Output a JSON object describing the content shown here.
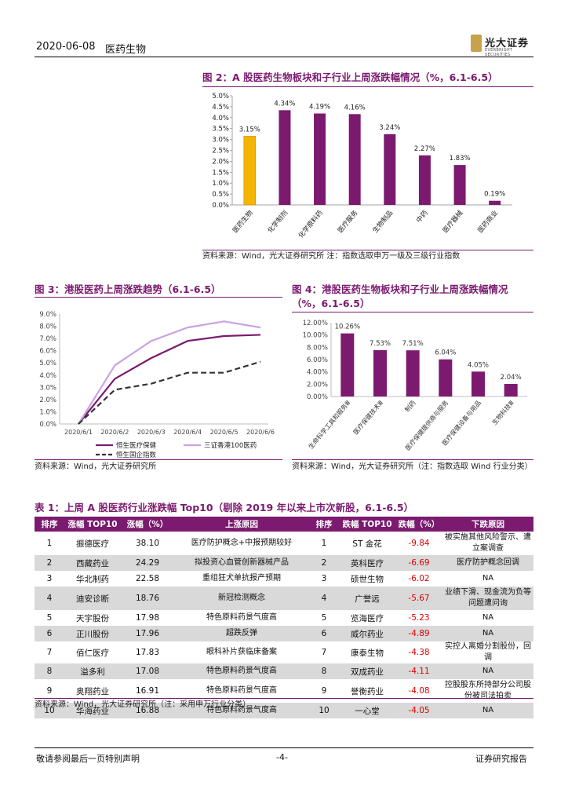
{
  "header": {
    "date": "2020-06-08",
    "sector": "医药生物",
    "logo_text": "光大证券",
    "logo_sub": "EVERBRIGHT SECURITIES"
  },
  "fig2": {
    "title": "图 2：A 股医药生物板块和子行业上周涨跌幅情况（%，6.1-6.5）",
    "source": "资料来源：Wind，光大证券研究所    注：指数选取申万一级及三级行业指数",
    "chart_data": {
      "type": "bar",
      "categories": [
        "医药生物",
        "化学制剂",
        "化学原料药",
        "医疗服务",
        "生物制品",
        "中药",
        "医疗器械",
        "医药商业"
      ],
      "values": [
        3.15,
        4.34,
        4.19,
        4.16,
        3.24,
        2.27,
        1.83,
        0.19
      ],
      "data_labels": [
        "3.15%",
        "4.34%",
        "4.19%",
        "4.16%",
        "3.24%",
        "2.27%",
        "1.83%",
        "0.19%"
      ],
      "yticks": [
        "0.0%",
        "0.5%",
        "1.0%",
        "1.5%",
        "2.0%",
        "2.5%",
        "3.0%",
        "3.5%",
        "4.0%",
        "4.5%",
        "5.0%"
      ],
      "ylim": [
        0,
        5
      ],
      "colors": {
        "highlight": "#f5b400",
        "bar": "#7b1a6f"
      }
    }
  },
  "fig3": {
    "title": "图 3：港股医药上周涨跌趋势（6.1-6.5）",
    "source": "资料来源：Wind，光大证券研究所",
    "chart_data": {
      "type": "line",
      "x": [
        "2020/6/1",
        "2020/6/2",
        "2020/6/3",
        "2020/6/4",
        "2020/6/5",
        "2020/6/6"
      ],
      "yticks": [
        "0.0%",
        "1.0%",
        "2.0%",
        "3.0%",
        "4.0%",
        "5.0%",
        "6.0%",
        "7.0%",
        "8.0%",
        "9.0%"
      ],
      "ylim": [
        0,
        9
      ],
      "series": [
        {
          "name": "恒生医疗保健",
          "values": [
            0.0,
            3.7,
            5.4,
            6.8,
            7.2,
            7.3
          ],
          "color": "#7b1a6f",
          "dash": false
        },
        {
          "name": "三证香港100医药",
          "values": [
            0.0,
            4.8,
            6.8,
            7.9,
            8.4,
            7.9
          ],
          "color": "#c9a2e6",
          "dash": false
        },
        {
          "name": "恒生国企指数",
          "values": [
            0.0,
            2.8,
            3.3,
            4.2,
            4.2,
            5.1
          ],
          "color": "#333333",
          "dash": true
        }
      ],
      "legend_extra_mark": "`"
    }
  },
  "fig4": {
    "title": "图 4：港股医药生物板块和子行业上周涨跌幅情况（%，6.1-6.5）",
    "source": "资料来源：Wind，光大证券研究所（注：指数选取 Wind 行业分类）",
    "chart_data": {
      "type": "bar",
      "categories": [
        "生命科学工具和服务Ⅲ",
        "医疗保健技术Ⅲ",
        "制药",
        "医疗保健提供商与服务",
        "医疗保健设备与用品",
        "生物科技Ⅲ"
      ],
      "values": [
        10.26,
        7.53,
        7.51,
        6.04,
        4.05,
        2.04
      ],
      "data_labels": [
        "10.26%",
        "7.53%",
        "7.51%",
        "6.04%",
        "4.05%",
        "2.04%"
      ],
      "yticks": [
        "0.00%",
        "2.00%",
        "4.00%",
        "6.00%",
        "8.00%",
        "10.00%",
        "12.00%"
      ],
      "ylim": [
        0,
        12
      ],
      "colors": {
        "bar": "#7b1a6f"
      }
    }
  },
  "table1": {
    "title": "表 1：上周 A 股医药行业涨跌幅 Top10（剔除 2019 年以来上市次新股，6.1-6.5）",
    "headers": [
      "排序",
      "涨幅 TOP10",
      "涨幅（%）",
      "上涨原因",
      "排序",
      "跌幅 TOP10",
      "跌幅（%）",
      "下跌原因"
    ],
    "rows": [
      [
        "1",
        "振德医疗",
        "38.10",
        "医疗防护概念+中报预期较好",
        "1",
        "ST 金花",
        "-9.84",
        "被实施其他风险警示、遭立案调查"
      ],
      [
        "2",
        "西藏药业",
        "24.29",
        "拟投资心血管创新器械产品",
        "2",
        "英科医疗",
        "-6.69",
        "医疗防护概念回调"
      ],
      [
        "3",
        "华北制药",
        "22.58",
        "重组狂犬单抗报产预期",
        "3",
        "硕世生物",
        "-6.02",
        "NA"
      ],
      [
        "4",
        "迪安诊断",
        "18.76",
        "新冠检测概念",
        "4",
        "广誉远",
        "-5.67",
        "业绩下滑、现金流为负等问题遭问询"
      ],
      [
        "5",
        "天宇股份",
        "17.98",
        "特色原料药景气度高",
        "5",
        "览海医疗",
        "-5.23",
        "NA"
      ],
      [
        "6",
        "正川股份",
        "17.96",
        "超跌反弹",
        "6",
        "威尔药业",
        "-4.89",
        "NA"
      ],
      [
        "7",
        "佰仁医疗",
        "17.83",
        "眼科补片获临床备案",
        "7",
        "康泰生物",
        "-4.38",
        "实控人离婚分割股份，回调"
      ],
      [
        "8",
        "溢多利",
        "17.08",
        "特色原料药景气度高",
        "8",
        "双成药业",
        "-4.11",
        "NA"
      ],
      [
        "9",
        "奥翔药业",
        "16.91",
        "特色原料药景气度高",
        "9",
        "誉衡药业",
        "-4.08",
        "控股股东所持部分公司股份被司法拍卖"
      ],
      [
        "10",
        "华海药业",
        "16.88",
        "特色原料药景气度高",
        "10",
        "一心堂",
        "-4.05",
        "NA"
      ]
    ],
    "source": "资料来源：Wind，光大证券研究所（注：采用申万行业分类）"
  },
  "footer": {
    "left": "敬请参阅最后一页特别声明",
    "page": "-4-",
    "right": "证券研究报告"
  }
}
